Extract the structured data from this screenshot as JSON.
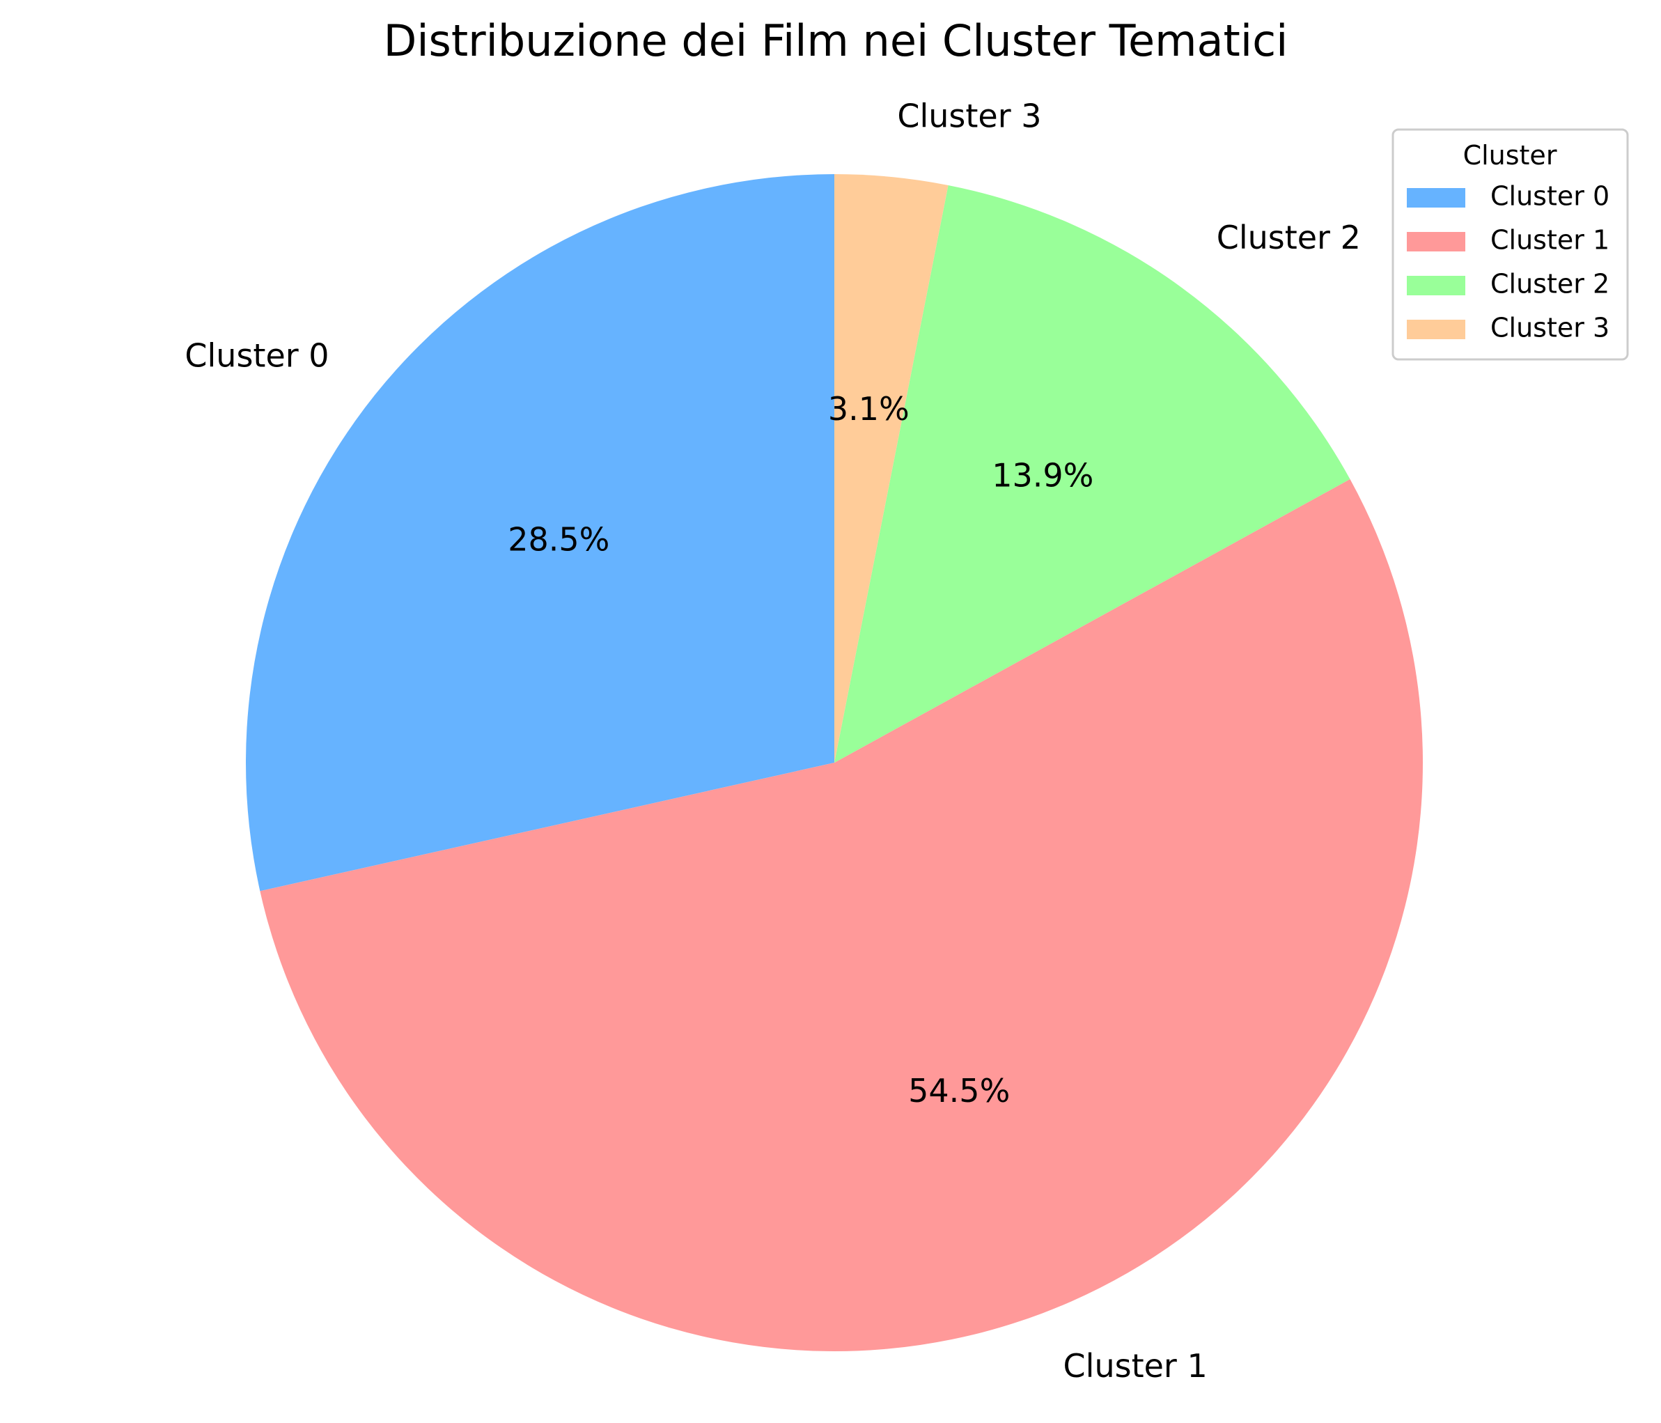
{
  "chart_data": {
    "type": "pie",
    "title": "Distribuzione dei Film nei Cluster Tematici",
    "slices": [
      {
        "label": "Cluster 0",
        "value": 28.5,
        "pct_label": "28.5%",
        "color": "#66b3ff"
      },
      {
        "label": "Cluster 1",
        "value": 54.5,
        "pct_label": "54.5%",
        "color": "#ff9999"
      },
      {
        "label": "Cluster 2",
        "value": 13.9,
        "pct_label": "13.9%",
        "color": "#99ff99"
      },
      {
        "label": "Cluster 3",
        "value": 3.1,
        "pct_label": "3.1%",
        "color": "#ffcc99"
      }
    ],
    "start_angle_deg": 90,
    "direction": "counterclockwise",
    "legend": {
      "title": "Cluster",
      "placement": "top-right",
      "entries": [
        "Cluster 0",
        "Cluster 1",
        "Cluster 2",
        "Cluster 3"
      ]
    }
  }
}
